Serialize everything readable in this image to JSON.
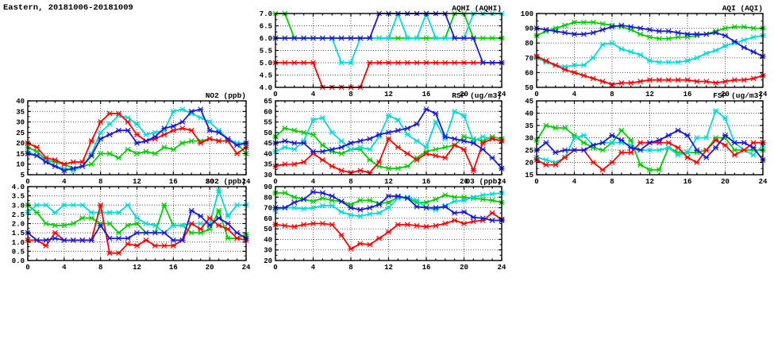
{
  "title": "Eastern, 20181006-20181009",
  "colors": {
    "red": "#ff0000",
    "green": "#00cc00",
    "blue": "#1a1ad9",
    "cyan": "#00d9d9",
    "axis": "#000000",
    "grid": "#4d4d4d"
  },
  "chart_data": [
    {
      "id": "aqhi",
      "title": "AQHI (AQHI)",
      "type": "line",
      "xlim": [
        0,
        24
      ],
      "xticks": [
        0,
        4,
        8,
        12,
        16,
        20,
        24
      ],
      "x_minor_step": 1,
      "ylim": [
        4.0,
        7.0
      ],
      "yticks": [
        4.0,
        4.5,
        5.0,
        5.5,
        6.0,
        6.5,
        7.0
      ],
      "ytick_labels": [
        "4.0",
        "4.5",
        "5.0",
        "5.5",
        "6.0",
        "6.5",
        "7.0"
      ],
      "grid": true,
      "legend": "none",
      "series": [
        {
          "name": "green-series",
          "color": "#00cc00",
          "values": [
            7,
            7,
            6,
            6,
            6,
            6,
            6,
            6,
            6,
            6,
            6,
            6,
            6,
            6,
            6,
            6,
            6,
            6,
            6,
            7,
            7,
            6,
            6,
            6,
            6
          ]
        },
        {
          "name": "cyan-series",
          "color": "#00d9d9",
          "values": [
            6,
            6,
            6,
            6,
            6,
            6,
            6,
            5,
            5,
            6,
            6,
            6,
            6,
            7,
            6,
            6,
            7,
            6,
            6,
            6,
            6,
            7,
            7,
            7,
            7
          ]
        },
        {
          "name": "red-series",
          "color": "#ff0000",
          "values": [
            5,
            5,
            5,
            5,
            5,
            4,
            4,
            4,
            4,
            4,
            5,
            5,
            5,
            5,
            5,
            5,
            5,
            5,
            5,
            5,
            5,
            5,
            5,
            5,
            5
          ]
        },
        {
          "name": "blue-series",
          "color": "#1a1ad9",
          "values": [
            6,
            6,
            6,
            6,
            6,
            6,
            6,
            6,
            6,
            6,
            6,
            7,
            7,
            7,
            7,
            7,
            7,
            7,
            7,
            6,
            6,
            6,
            5,
            5,
            5
          ]
        }
      ]
    },
    {
      "id": "aqi",
      "title": "AQI (AQI)",
      "type": "line",
      "xlim": [
        0,
        24
      ],
      "xticks": [
        0,
        4,
        8,
        12,
        16,
        20,
        24
      ],
      "x_minor_step": 1,
      "ylim": [
        50,
        100
      ],
      "yticks": [
        50,
        60,
        70,
        80,
        90,
        100
      ],
      "ytick_labels": [
        "50",
        "60",
        "70",
        "80",
        "90",
        "100"
      ],
      "grid": true,
      "legend": "none",
      "series": [
        {
          "name": "green-series",
          "color": "#00cc00",
          "values": [
            85,
            88,
            90,
            92,
            94,
            94,
            94,
            93,
            92,
            91,
            89,
            86,
            84,
            83,
            83,
            84,
            84,
            85,
            86,
            88,
            90,
            91,
            91,
            90,
            90
          ]
        },
        {
          "name": "cyan-series",
          "color": "#00d9d9",
          "values": [
            70,
            67,
            65,
            64,
            65,
            65,
            70,
            79,
            80,
            76,
            74,
            72,
            68,
            67,
            67,
            67,
            68,
            70,
            73,
            75,
            78,
            80,
            82,
            84,
            85
          ]
        },
        {
          "name": "red-series",
          "color": "#ff0000",
          "values": [
            71,
            68,
            65,
            62,
            60,
            58,
            56,
            54,
            52,
            53,
            53,
            54,
            55,
            55,
            55,
            55,
            55,
            54,
            54,
            53,
            54,
            55,
            55,
            56,
            58
          ]
        },
        {
          "name": "blue-series",
          "color": "#1a1ad9",
          "values": [
            90,
            89,
            88,
            87,
            86,
            86,
            87,
            89,
            91,
            92,
            91,
            90,
            89,
            88,
            88,
            87,
            86,
            86,
            86,
            87,
            85,
            81,
            77,
            74,
            71
          ]
        }
      ]
    },
    {
      "id": "no2",
      "title": "NO2 (ppb)",
      "type": "line",
      "xlim": [
        0,
        24
      ],
      "xticks": [
        0,
        4,
        8,
        12,
        16,
        20,
        24
      ],
      "x_minor_step": 1,
      "ylim": [
        5,
        40
      ],
      "yticks": [
        5,
        10,
        15,
        20,
        25,
        30,
        35,
        40
      ],
      "ytick_labels": [
        "5",
        "10",
        "15",
        "20",
        "25",
        "30",
        "35",
        "40"
      ],
      "grid": true,
      "legend": "none",
      "series": [
        {
          "name": "green-series",
          "color": "#00cc00",
          "values": [
            18,
            16,
            12,
            11,
            10,
            8,
            9,
            10,
            15,
            15,
            13,
            17,
            15,
            16,
            15,
            18,
            17,
            20,
            21,
            21,
            22,
            21,
            21,
            20,
            15
          ]
        },
        {
          "name": "cyan-series",
          "color": "#00d9d9",
          "values": [
            16,
            14,
            12,
            9,
            8,
            7,
            9,
            15,
            25,
            29,
            33,
            32,
            29,
            24,
            25,
            26,
            35,
            36,
            34,
            32,
            30,
            26,
            22,
            20,
            20
          ]
        },
        {
          "name": "red-series",
          "color": "#ff0000",
          "values": [
            20,
            18,
            13,
            12,
            10,
            11,
            11,
            21,
            30,
            34,
            34,
            30,
            24,
            21,
            22,
            24,
            26,
            27,
            26,
            20,
            22,
            21,
            21,
            15,
            18
          ]
        },
        {
          "name": "blue-series",
          "color": "#1a1ad9",
          "values": [
            15,
            14,
            11,
            9,
            7,
            8,
            9,
            14,
            22,
            24,
            26,
            26,
            20,
            21,
            23,
            27,
            28,
            30,
            35,
            36,
            26,
            25,
            22,
            19,
            20
          ]
        }
      ]
    },
    {
      "id": "rsp",
      "title": "RSP (ug/m3)",
      "type": "line",
      "xlim": [
        0,
        24
      ],
      "xticks": [
        0,
        4,
        8,
        12,
        16,
        20,
        24
      ],
      "x_minor_step": 1,
      "ylim": [
        30,
        65
      ],
      "yticks": [
        30,
        35,
        40,
        45,
        50,
        55,
        60,
        65
      ],
      "ytick_labels": [
        "30",
        "35",
        "40",
        "45",
        "50",
        "55",
        "60",
        "65"
      ],
      "grid": true,
      "legend": "none",
      "series": [
        {
          "name": "green-series",
          "color": "#00cc00",
          "values": [
            48,
            52,
            51,
            50,
            49,
            44,
            41,
            40,
            42,
            42,
            37,
            34,
            33,
            33,
            34,
            38,
            41,
            42,
            43,
            44,
            48,
            47,
            46,
            48,
            47
          ]
        },
        {
          "name": "cyan-series",
          "color": "#00d9d9",
          "values": [
            41,
            43,
            42,
            46,
            56,
            57,
            50,
            46,
            42,
            43,
            42,
            48,
            58,
            56,
            49,
            46,
            43,
            55,
            47,
            60,
            58,
            46,
            48,
            47,
            46
          ]
        },
        {
          "name": "red-series",
          "color": "#ff0000",
          "values": [
            34,
            35,
            35,
            36,
            40,
            37,
            34,
            32,
            31,
            32,
            31,
            36,
            47,
            43,
            40,
            37,
            40,
            39,
            38,
            44,
            42,
            32,
            45,
            47,
            46
          ]
        },
        {
          "name": "blue-series",
          "color": "#1a1ad9",
          "values": [
            45,
            46,
            45,
            45,
            41,
            41,
            42,
            43,
            45,
            46,
            47,
            49,
            50,
            51,
            52,
            54,
            61,
            59,
            48,
            47,
            46,
            45,
            42,
            38,
            33
          ]
        }
      ]
    },
    {
      "id": "fsp",
      "title": "FSP (ug/m3)",
      "type": "line",
      "xlim": [
        0,
        24
      ],
      "xticks": [
        0,
        4,
        8,
        12,
        16,
        20,
        24
      ],
      "x_minor_step": 1,
      "ylim": [
        15,
        45
      ],
      "yticks": [
        15,
        20,
        25,
        30,
        35,
        40,
        45
      ],
      "ytick_labels": [
        "15",
        "20",
        "25",
        "30",
        "35",
        "40",
        "45"
      ],
      "grid": true,
      "legend": "none",
      "series": [
        {
          "name": "green-series",
          "color": "#00cc00",
          "values": [
            29,
            35,
            34,
            34,
            31,
            28,
            26,
            25,
            28,
            33,
            29,
            19,
            17,
            17,
            26,
            24,
            24,
            24,
            25,
            30,
            30,
            25,
            25,
            25,
            25
          ]
        },
        {
          "name": "cyan-series",
          "color": "#00d9d9",
          "values": [
            22,
            21,
            20,
            22,
            30,
            31,
            27,
            28,
            28,
            28,
            27,
            25,
            25,
            25,
            26,
            23,
            24,
            30,
            30,
            41,
            38,
            28,
            25,
            23,
            27
          ]
        },
        {
          "name": "red-series",
          "color": "#ff0000",
          "values": [
            21,
            19,
            19,
            22,
            25,
            25,
            20,
            17,
            20,
            24,
            24,
            28,
            28,
            28,
            28,
            26,
            22,
            20,
            25,
            29,
            27,
            23,
            25,
            28,
            28
          ]
        },
        {
          "name": "blue-series",
          "color": "#1a1ad9",
          "values": [
            25,
            28,
            24,
            25,
            25,
            25,
            27,
            28,
            31,
            29,
            26,
            25,
            28,
            29,
            31,
            33,
            31,
            25,
            22,
            26,
            31,
            28,
            28,
            26,
            21
          ]
        }
      ]
    },
    {
      "id": "so2",
      "title": "SO2 (ppb)",
      "type": "line",
      "xlim": [
        0,
        24
      ],
      "xticks": [
        0,
        4,
        8,
        12,
        16,
        20,
        24
      ],
      "x_minor_step": 1,
      "ylim": [
        0.0,
        4.0
      ],
      "yticks": [
        0.0,
        0.5,
        1.0,
        1.5,
        2.0,
        2.5,
        3.0,
        3.5,
        4.0
      ],
      "ytick_labels": [
        "0.0",
        "0.5",
        "1.0",
        "1.5",
        "2.0",
        "2.5",
        "3.0",
        "3.5",
        "4.0"
      ],
      "grid": true,
      "legend": "none",
      "series": [
        {
          "name": "green-series",
          "color": "#00cc00",
          "values": [
            3.0,
            2.6,
            2.0,
            1.9,
            1.9,
            2.0,
            2.3,
            2.3,
            2.0,
            2.0,
            1.5,
            1.9,
            2.0,
            1.5,
            1.5,
            3.0,
            1.9,
            1.9,
            1.5,
            1.5,
            1.7,
            2.7,
            1.2,
            1.2,
            1.4
          ]
        },
        {
          "name": "cyan-series",
          "color": "#00d9d9",
          "values": [
            2.6,
            3.0,
            3.0,
            2.6,
            3.0,
            3.0,
            3.0,
            2.6,
            2.6,
            2.6,
            2.6,
            3.0,
            2.3,
            2.0,
            1.9,
            1.5,
            1.9,
            1.9,
            2.0,
            2.0,
            2.0,
            3.8,
            2.4,
            3.0,
            3.0
          ]
        },
        {
          "name": "red-series",
          "color": "#ff0000",
          "values": [
            1.1,
            1.1,
            0.8,
            1.5,
            1.1,
            1.1,
            1.1,
            1.1,
            3.0,
            0.4,
            0.4,
            0.9,
            0.8,
            1.1,
            0.8,
            0.8,
            0.8,
            1.1,
            2.0,
            1.7,
            2.3,
            1.9,
            1.7,
            1.2,
            1.1
          ]
        },
        {
          "name": "blue-series",
          "color": "#1a1ad9",
          "values": [
            1.5,
            1.1,
            1.1,
            1.2,
            1.1,
            1.1,
            1.1,
            1.1,
            1.9,
            1.2,
            1.2,
            1.2,
            1.5,
            1.5,
            1.5,
            1.5,
            1.1,
            1.1,
            2.7,
            2.4,
            1.9,
            2.3,
            2.0,
            1.5,
            1.2
          ]
        }
      ]
    },
    {
      "id": "o3",
      "title": "O3 (ppb)",
      "type": "line",
      "xlim": [
        0,
        24
      ],
      "xticks": [
        0,
        4,
        8,
        12,
        16,
        20,
        24
      ],
      "x_minor_step": 1,
      "ylim": [
        20,
        90
      ],
      "yticks": [
        20,
        30,
        40,
        50,
        60,
        70,
        80,
        90
      ],
      "ytick_labels": [
        "20",
        "30",
        "40",
        "50",
        "60",
        "70",
        "80",
        "90"
      ],
      "grid": true,
      "legend": "none",
      "series": [
        {
          "name": "green-series",
          "color": "#00cc00",
          "values": [
            84,
            84,
            80,
            78,
            76,
            79,
            77,
            76,
            73,
            77,
            77,
            74,
            75,
            80,
            79,
            75,
            75,
            78,
            82,
            80,
            80,
            79,
            78,
            77,
            75
          ]
        },
        {
          "name": "cyan-series",
          "color": "#00d9d9",
          "values": [
            68,
            70,
            70,
            69,
            70,
            72,
            72,
            66,
            63,
            62,
            64,
            65,
            70,
            79,
            80,
            77,
            70,
            68,
            72,
            76,
            77,
            80,
            82,
            83,
            84
          ]
        },
        {
          "name": "red-series",
          "color": "#ff0000",
          "values": [
            54,
            53,
            52,
            54,
            55,
            55,
            54,
            44,
            31,
            36,
            35,
            41,
            47,
            54,
            54,
            53,
            52,
            53,
            55,
            58,
            55,
            57,
            58,
            65,
            59
          ]
        },
        {
          "name": "blue-series",
          "color": "#1a1ad9",
          "values": [
            70,
            70,
            75,
            78,
            85,
            84,
            81,
            76,
            70,
            68,
            70,
            73,
            81,
            81,
            79,
            71,
            70,
            70,
            71,
            65,
            66,
            61,
            60,
            58,
            58
          ]
        }
      ]
    }
  ]
}
